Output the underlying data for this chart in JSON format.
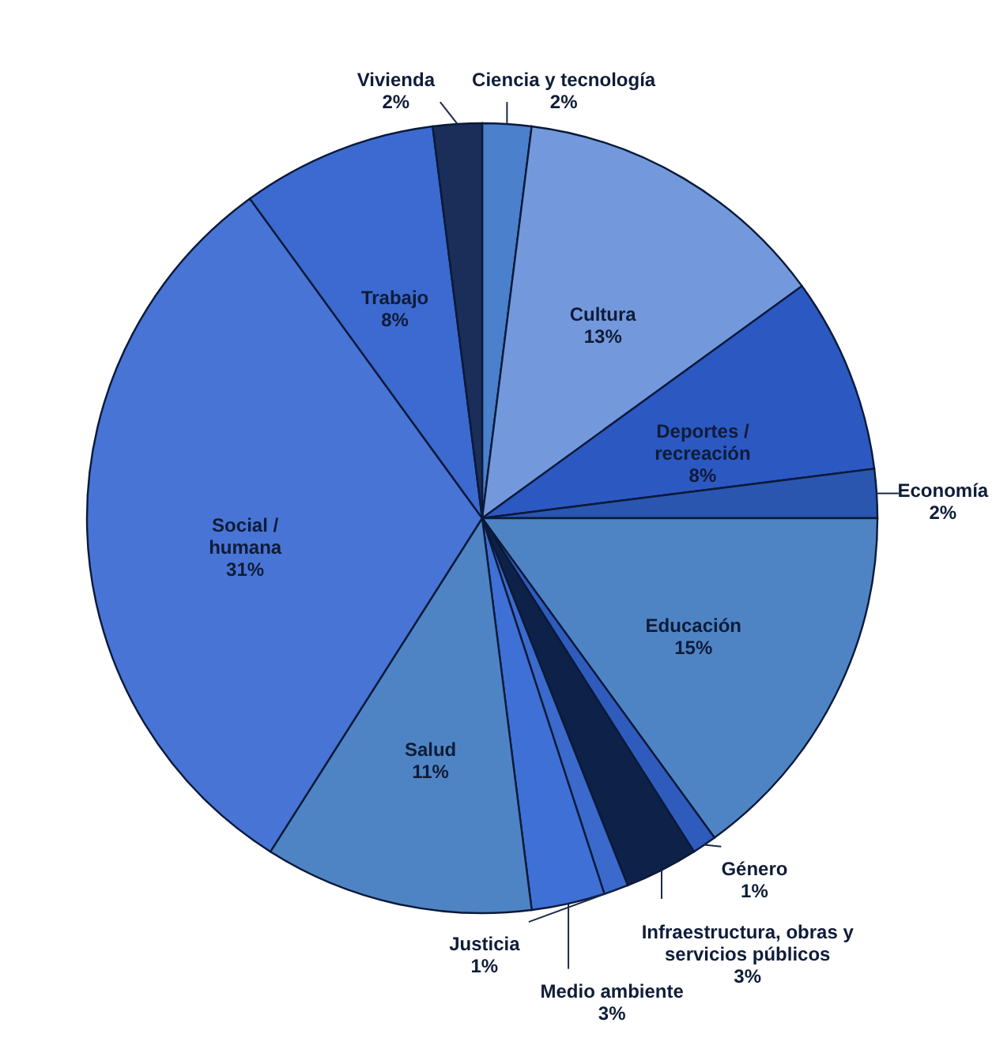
{
  "chart_data": {
    "type": "pie",
    "categories": [
      "Ciencia y tecnología",
      "Cultura",
      "Deportes / recreación",
      "Economía",
      "Educación",
      "Género",
      "Infraestructura, obras y servicios públicos",
      "Justicia",
      "Medio ambiente",
      "Salud",
      "Social / humana",
      "Trabajo",
      "Vivienda"
    ],
    "values": [
      2,
      13,
      8,
      2,
      15,
      1,
      3,
      1,
      3,
      11,
      31,
      8,
      2
    ],
    "value_labels": [
      "2%",
      "13%",
      "8%",
      "2%",
      "15%",
      "1%",
      "3%",
      "1%",
      "3%",
      "11%",
      "31%",
      "8%",
      "2%"
    ],
    "colors": [
      "#4a80cc",
      "#7399dc",
      "#2c58c2",
      "#2a56b0",
      "#4f84c4",
      "#2f5cbc",
      "#0e2148",
      "#3b6acc",
      "#3f70d6",
      "#4f84c4",
      "#4874d6",
      "#3c6ad0",
      "#1b2e5a"
    ]
  }
}
